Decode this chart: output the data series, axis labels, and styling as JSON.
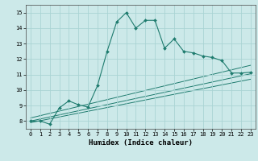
{
  "title": "",
  "xlabel": "Humidex (Indice chaleur)",
  "xlim": [
    -0.5,
    23.5
  ],
  "ylim": [
    7.5,
    15.5
  ],
  "xticks": [
    0,
    1,
    2,
    3,
    4,
    5,
    6,
    7,
    8,
    9,
    10,
    11,
    12,
    13,
    14,
    15,
    16,
    17,
    18,
    19,
    20,
    21,
    22,
    23
  ],
  "yticks": [
    8,
    9,
    10,
    11,
    12,
    13,
    14,
    15
  ],
  "background_color": "#cce9e9",
  "grid_color": "#aad4d4",
  "line_color": "#1e7b6e",
  "main_x": [
    0,
    1,
    2,
    3,
    4,
    5,
    6,
    7,
    8,
    9,
    10,
    11,
    12,
    13,
    14,
    15,
    16,
    17,
    18,
    19,
    20,
    21,
    22,
    23
  ],
  "main_y": [
    8.0,
    8.0,
    7.8,
    8.85,
    9.3,
    9.05,
    8.9,
    10.3,
    12.5,
    14.4,
    15.0,
    14.0,
    14.5,
    14.5,
    12.7,
    13.3,
    12.5,
    12.4,
    12.2,
    12.1,
    11.9,
    11.1,
    11.1,
    11.15
  ],
  "trend1_x": [
    0,
    23
  ],
  "trend1_y": [
    8.2,
    11.6
  ],
  "trend2_x": [
    0,
    23
  ],
  "trend2_y": [
    8.0,
    11.05
  ],
  "trend3_x": [
    0,
    23
  ],
  "trend3_y": [
    7.9,
    10.7
  ]
}
